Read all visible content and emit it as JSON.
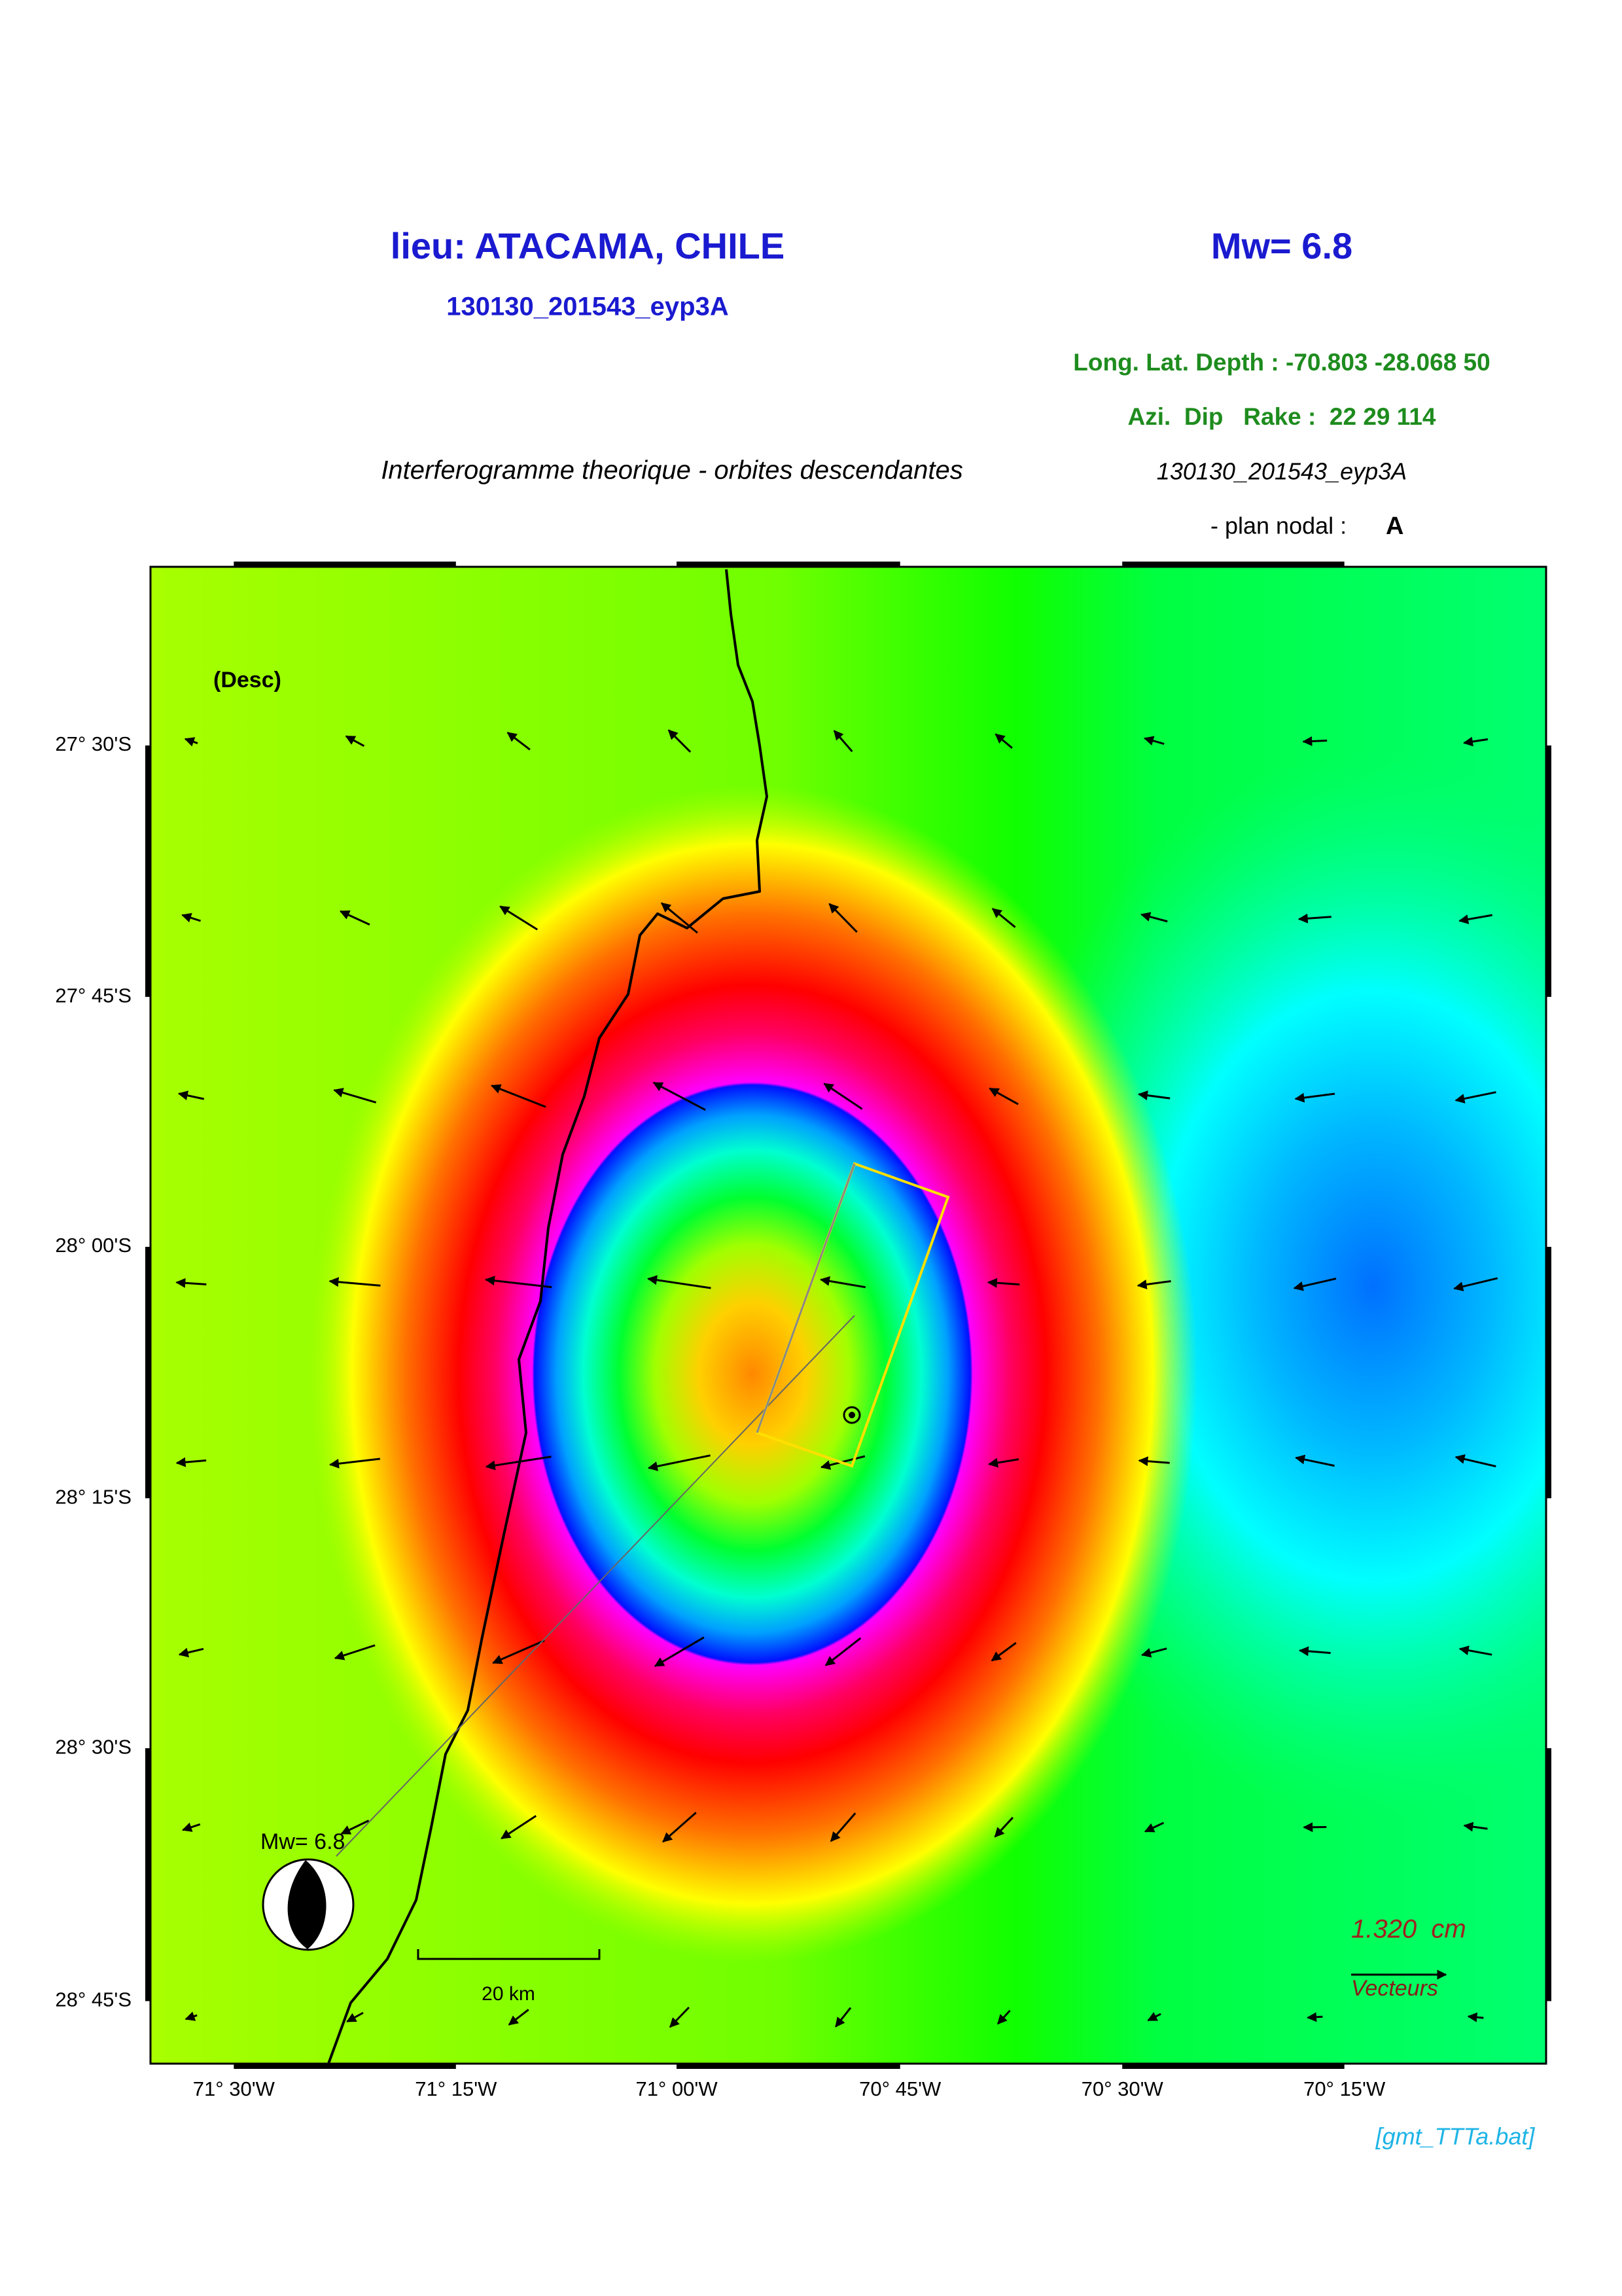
{
  "header": {
    "title": "lieu: ATACAMA, CHILE",
    "event_id": "130130_201543_eyp3A",
    "magnitude": "Mw= 6.8",
    "location_params": "Long. Lat. Depth : -70.803 -28.068 50",
    "mechanism": "Azi.  Dip   Rake :  22 29 114",
    "subtitle": "Interferogramme theorique - orbites descendantes",
    "event_id_italic": "130130_201543_eyp3A",
    "nodal_plane_label": "- plan nodal :",
    "nodal_plane": "A"
  },
  "map": {
    "mode": "(Desc)",
    "lat_labels": [
      "27° 30'S",
      "27° 45'S",
      "28° 00'S",
      "28° 15'S",
      "28° 30'S",
      "28° 45'S"
    ],
    "lon_labels": [
      "71° 30'W",
      "71° 15'W",
      "71° 00'W",
      "70° 45'W",
      "70° 30'W",
      "70° 15'W"
    ],
    "beachball_label": "Mw= 6.8",
    "scale_bar": "20 km",
    "vector_scale": "1.320  cm",
    "vector_label": "Vecteurs"
  },
  "footer": "[gmt_TTTa.bat]"
}
